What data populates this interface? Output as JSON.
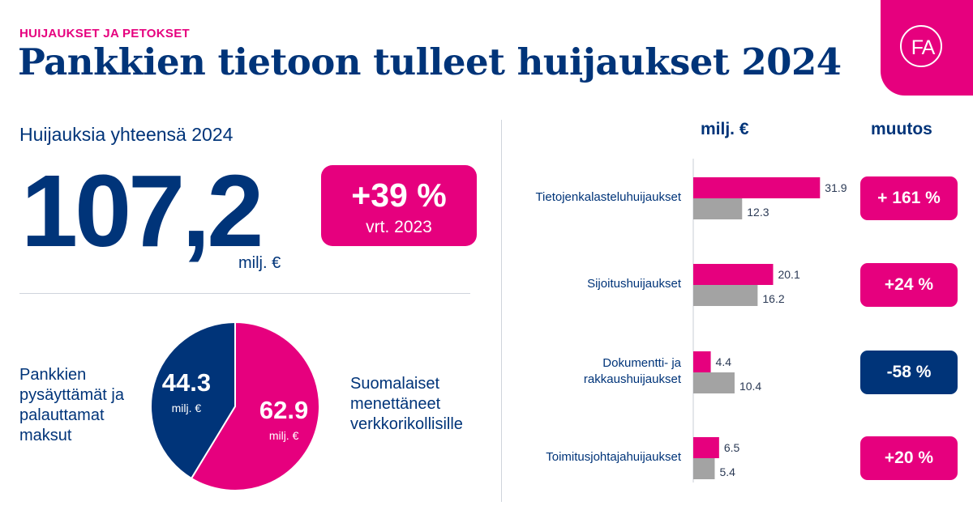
{
  "header": {
    "kicker": "HUIJAUKSET JA PETOKSET",
    "title": "Pankkien tietoon tulleet huijaukset 2024",
    "logo_text": "FA"
  },
  "total": {
    "label": "Huijauksia yhteensä 2024",
    "value": "107,2",
    "unit": "milj. €",
    "change": "+39 %",
    "change_note": "vrt. 2023"
  },
  "colors": {
    "pink": "#e6007e",
    "navy": "#003479",
    "gray": "#a3a3a3"
  },
  "chart_data": [
    {
      "type": "pie",
      "slices": [
        {
          "value": 62.9,
          "value_label": "62.9",
          "unit": "milj. €",
          "label": "Suomalaiset menettäneet verkkorikollisille",
          "color": "#e6007e"
        },
        {
          "value": 44.3,
          "value_label": "44.3",
          "unit": "milj. €",
          "label": "Pankkien pysäyttämät ja palauttamat maksut",
          "color": "#003479"
        }
      ],
      "left_label": "Pankkien\npysäyttämät ja\npalauttamat\nmaksut",
      "right_label": "Suomalaiset\nmenettäneet\nverkkorikollisille"
    },
    {
      "type": "bar",
      "orientation": "horizontal",
      "value_header": "milj. €",
      "change_header": "muutos",
      "categories": [
        "Tietojenkalasteluhuijaukset",
        "Sijoitushuijaukset",
        "Dokumentti- ja\nrakkaushuijaukset",
        "Toimitusjohtajahuijaukset"
      ],
      "series": [
        {
          "values": [
            31.9,
            20.1,
            4.4,
            6.5
          ],
          "labels": [
            "31.9",
            "20.1",
            "4.4",
            "6.5"
          ],
          "color": "#e6007e"
        },
        {
          "values": [
            12.3,
            16.2,
            10.4,
            5.4
          ],
          "labels": [
            "12.3",
            "16.2",
            "10.4",
            "5.4"
          ],
          "color": "#a3a3a3"
        }
      ],
      "changes": [
        {
          "label": "+ 161 %",
          "color": "#e6007e"
        },
        {
          "label": "+24 %",
          "color": "#e6007e"
        },
        {
          "label": "-58 %",
          "color": "#003479"
        },
        {
          "label": "+20 %",
          "color": "#e6007e"
        }
      ]
    }
  ]
}
